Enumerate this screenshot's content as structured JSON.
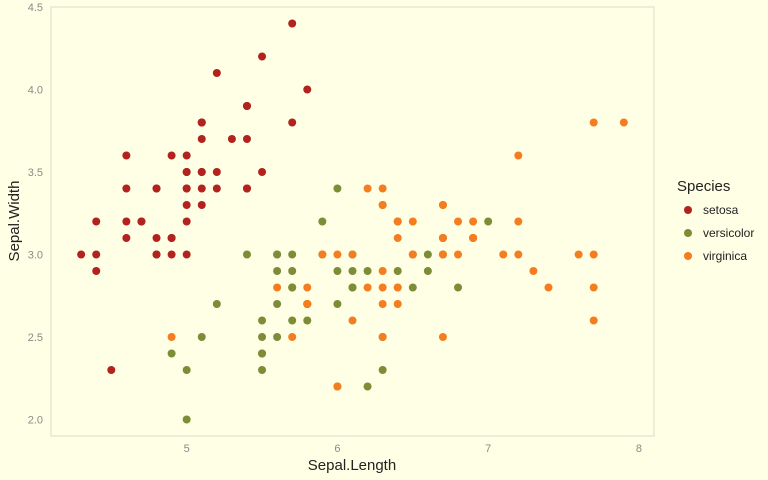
{
  "chart_data": {
    "type": "scatter",
    "xlabel": "Sepal.Length",
    "ylabel": "Sepal.Width",
    "xlim": [
      4.1,
      8.1
    ],
    "ylim": [
      1.9,
      4.5
    ],
    "x_ticks": [
      5,
      6,
      7,
      8
    ],
    "y_ticks": [
      2.0,
      2.5,
      3.0,
      3.5,
      4.0,
      4.5
    ],
    "x_tick_labels": [
      "5",
      "6",
      "7",
      "8"
    ],
    "y_tick_labels": [
      "2.0",
      "2.5",
      "3.0",
      "3.5",
      "4.0",
      "4.5"
    ],
    "grid": false,
    "legend": {
      "title": "Species",
      "position": "right"
    },
    "background": "#FFFFE5",
    "panel_border_color": "#dedbcc",
    "series": [
      {
        "name": "setosa",
        "color": "#B2221F",
        "points": [
          [
            5.1,
            3.5
          ],
          [
            4.9,
            3.0
          ],
          [
            4.7,
            3.2
          ],
          [
            4.6,
            3.1
          ],
          [
            5.0,
            3.6
          ],
          [
            5.4,
            3.9
          ],
          [
            4.6,
            3.4
          ],
          [
            5.0,
            3.4
          ],
          [
            4.4,
            2.9
          ],
          [
            4.9,
            3.1
          ],
          [
            5.4,
            3.7
          ],
          [
            4.8,
            3.4
          ],
          [
            4.8,
            3.0
          ],
          [
            4.3,
            3.0
          ],
          [
            5.8,
            4.0
          ],
          [
            5.7,
            4.4
          ],
          [
            5.4,
            3.9
          ],
          [
            5.1,
            3.5
          ],
          [
            5.7,
            3.8
          ],
          [
            5.1,
            3.8
          ],
          [
            5.4,
            3.4
          ],
          [
            5.1,
            3.7
          ],
          [
            4.6,
            3.6
          ],
          [
            5.1,
            3.3
          ],
          [
            4.8,
            3.4
          ],
          [
            5.0,
            3.0
          ],
          [
            5.0,
            3.4
          ],
          [
            5.2,
            3.5
          ],
          [
            5.2,
            3.4
          ],
          [
            4.7,
            3.2
          ],
          [
            4.8,
            3.1
          ],
          [
            5.4,
            3.4
          ],
          [
            5.2,
            4.1
          ],
          [
            5.5,
            4.2
          ],
          [
            4.9,
            3.1
          ],
          [
            5.0,
            3.2
          ],
          [
            5.5,
            3.5
          ],
          [
            4.9,
            3.6
          ],
          [
            4.4,
            3.0
          ],
          [
            5.1,
            3.4
          ],
          [
            5.0,
            3.5
          ],
          [
            4.5,
            2.3
          ],
          [
            4.4,
            3.2
          ],
          [
            5.0,
            3.5
          ],
          [
            5.1,
            3.8
          ],
          [
            4.8,
            3.0
          ],
          [
            5.1,
            3.8
          ],
          [
            4.6,
            3.2
          ],
          [
            5.3,
            3.7
          ],
          [
            5.0,
            3.3
          ]
        ]
      },
      {
        "name": "versicolor",
        "color": "#7C8C37",
        "points": [
          [
            7.0,
            3.2
          ],
          [
            6.4,
            3.2
          ],
          [
            6.9,
            3.1
          ],
          [
            5.5,
            2.3
          ],
          [
            6.5,
            2.8
          ],
          [
            5.7,
            2.8
          ],
          [
            6.3,
            3.3
          ],
          [
            4.9,
            2.4
          ],
          [
            6.6,
            2.9
          ],
          [
            5.2,
            2.7
          ],
          [
            5.0,
            2.0
          ],
          [
            5.9,
            3.0
          ],
          [
            6.0,
            2.2
          ],
          [
            6.1,
            2.9
          ],
          [
            5.6,
            2.9
          ],
          [
            6.7,
            3.1
          ],
          [
            5.6,
            3.0
          ],
          [
            5.8,
            2.7
          ],
          [
            6.2,
            2.2
          ],
          [
            5.6,
            2.5
          ],
          [
            5.9,
            3.2
          ],
          [
            6.1,
            2.8
          ],
          [
            6.3,
            2.5
          ],
          [
            6.1,
            2.8
          ],
          [
            6.4,
            2.9
          ],
          [
            6.6,
            3.0
          ],
          [
            6.8,
            2.8
          ],
          [
            6.7,
            3.0
          ],
          [
            6.0,
            2.9
          ],
          [
            5.7,
            2.6
          ],
          [
            5.5,
            2.4
          ],
          [
            5.5,
            2.4
          ],
          [
            5.8,
            2.7
          ],
          [
            6.0,
            2.7
          ],
          [
            5.4,
            3.0
          ],
          [
            6.0,
            3.4
          ],
          [
            6.7,
            3.1
          ],
          [
            6.3,
            2.3
          ],
          [
            5.6,
            3.0
          ],
          [
            5.5,
            2.5
          ],
          [
            5.5,
            2.6
          ],
          [
            6.1,
            3.0
          ],
          [
            5.8,
            2.6
          ],
          [
            5.0,
            2.3
          ],
          [
            5.6,
            2.7
          ],
          [
            5.7,
            3.0
          ],
          [
            5.7,
            2.9
          ],
          [
            6.2,
            2.9
          ],
          [
            5.1,
            2.5
          ],
          [
            5.7,
            2.8
          ]
        ]
      },
      {
        "name": "virginica",
        "color": "#F47D20",
        "points": [
          [
            6.3,
            3.3
          ],
          [
            5.8,
            2.7
          ],
          [
            7.1,
            3.0
          ],
          [
            6.3,
            2.9
          ],
          [
            6.5,
            3.0
          ],
          [
            7.6,
            3.0
          ],
          [
            4.9,
            2.5
          ],
          [
            7.3,
            2.9
          ],
          [
            6.7,
            2.5
          ],
          [
            7.2,
            3.6
          ],
          [
            6.5,
            3.2
          ],
          [
            6.4,
            2.7
          ],
          [
            6.8,
            3.0
          ],
          [
            5.7,
            2.5
          ],
          [
            5.8,
            2.8
          ],
          [
            6.4,
            3.2
          ],
          [
            6.5,
            3.0
          ],
          [
            7.7,
            3.8
          ],
          [
            7.7,
            2.6
          ],
          [
            6.0,
            2.2
          ],
          [
            6.9,
            3.2
          ],
          [
            5.6,
            2.8
          ],
          [
            7.7,
            2.8
          ],
          [
            6.3,
            2.7
          ],
          [
            6.7,
            3.3
          ],
          [
            7.2,
            3.2
          ],
          [
            6.2,
            2.8
          ],
          [
            6.1,
            3.0
          ],
          [
            6.4,
            2.8
          ],
          [
            7.2,
            3.0
          ],
          [
            7.4,
            2.8
          ],
          [
            7.9,
            3.8
          ],
          [
            6.4,
            2.8
          ],
          [
            6.3,
            2.8
          ],
          [
            6.1,
            2.6
          ],
          [
            7.7,
            3.0
          ],
          [
            6.3,
            3.4
          ],
          [
            6.4,
            3.1
          ],
          [
            6.0,
            3.0
          ],
          [
            6.9,
            3.1
          ],
          [
            6.7,
            3.1
          ],
          [
            6.9,
            3.1
          ],
          [
            5.8,
            2.7
          ],
          [
            6.8,
            3.2
          ],
          [
            6.7,
            3.3
          ],
          [
            6.7,
            3.0
          ],
          [
            6.3,
            2.5
          ],
          [
            6.5,
            3.0
          ],
          [
            6.2,
            3.4
          ],
          [
            5.9,
            3.0
          ]
        ]
      }
    ]
  }
}
